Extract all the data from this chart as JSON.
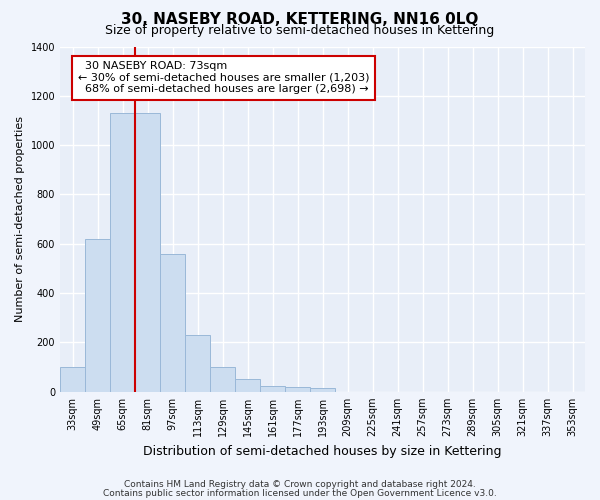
{
  "title": "30, NASEBY ROAD, KETTERING, NN16 0LQ",
  "subtitle": "Size of property relative to semi-detached houses in Kettering",
  "xlabel": "Distribution of semi-detached houses by size in Kettering",
  "ylabel": "Number of semi-detached properties",
  "bin_labels": [
    "33sqm",
    "49sqm",
    "65sqm",
    "81sqm",
    "97sqm",
    "113sqm",
    "129sqm",
    "145sqm",
    "161sqm",
    "177sqm",
    "193sqm",
    "209sqm",
    "225sqm",
    "241sqm",
    "257sqm",
    "273sqm",
    "289sqm",
    "305sqm",
    "321sqm",
    "337sqm",
    "353sqm"
  ],
  "bar_values": [
    100,
    620,
    1130,
    1130,
    560,
    230,
    100,
    50,
    25,
    20,
    15,
    0,
    0,
    0,
    0,
    0,
    0,
    0,
    0,
    0,
    0
  ],
  "bar_color": "#ccddf0",
  "bar_edge_color": "#9ab8d8",
  "property_line_x": 2.5,
  "property_line_label": "30 NASEBY ROAD: 73sqm",
  "smaller_pct": "30%",
  "smaller_count": "1,203",
  "larger_pct": "68%",
  "larger_count": "2,698",
  "annotation_box_color": "#ffffff",
  "annotation_box_edge": "#cc0000",
  "line_color": "#cc0000",
  "ylim": [
    0,
    1400
  ],
  "yticks": [
    0,
    200,
    400,
    600,
    800,
    1000,
    1200,
    1400
  ],
  "footnote1": "Contains HM Land Registry data © Crown copyright and database right 2024.",
  "footnote2": "Contains public sector information licensed under the Open Government Licence v3.0.",
  "background_color": "#f0f4fc",
  "plot_bg_color": "#e8eef8",
  "grid_color": "#ffffff",
  "title_fontsize": 11,
  "subtitle_fontsize": 9,
  "xlabel_fontsize": 9,
  "ylabel_fontsize": 8,
  "tick_fontsize": 7,
  "annotation_fontsize": 8,
  "footnote_fontsize": 6.5
}
